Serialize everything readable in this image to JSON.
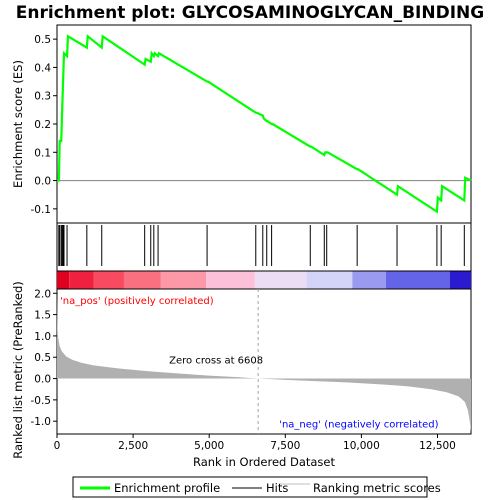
{
  "chart_data": {
    "type": "line",
    "title": "Enrichment plot: GLYCOSAMINOGLYCAN_BINDING",
    "top_panel": {
      "ylabel": "Enrichment score (ES)",
      "ylim": [
        -0.15,
        0.55
      ],
      "yticks": [
        "0.5",
        "0.4",
        "0.3",
        "0.2",
        "0.1",
        "0.0",
        "-0.1"
      ],
      "ytick_values": [
        0.5,
        0.4,
        0.3,
        0.2,
        0.1,
        0.0,
        -0.1
      ],
      "series": [
        {
          "name": "Enrichment profile",
          "color": "#00ff00",
          "points": [
            [
              0,
              0.0
            ],
            [
              60,
              0.0
            ],
            [
              90,
              0.14
            ],
            [
              140,
              0.14
            ],
            [
              170,
              0.25
            ],
            [
              200,
              0.35
            ],
            [
              230,
              0.45
            ],
            [
              330,
              0.44
            ],
            [
              360,
              0.51
            ],
            [
              980,
              0.47
            ],
            [
              1010,
              0.51
            ],
            [
              1470,
              0.47
            ],
            [
              1500,
              0.51
            ],
            [
              2880,
              0.41
            ],
            [
              2910,
              0.43
            ],
            [
              3080,
              0.42
            ],
            [
              3110,
              0.45
            ],
            [
              3180,
              0.44
            ],
            [
              3210,
              0.45
            ],
            [
              3320,
              0.44
            ],
            [
              3350,
              0.45
            ],
            [
              4930,
              0.35
            ],
            [
              4960,
              0.35
            ],
            [
              6530,
              0.24
            ],
            [
              6560,
              0.24
            ],
            [
              6760,
              0.23
            ],
            [
              6790,
              0.22
            ],
            [
              6890,
              0.21
            ],
            [
              6920,
              0.21
            ],
            [
              7050,
              0.2
            ],
            [
              7080,
              0.2
            ],
            [
              8320,
              0.12
            ],
            [
              8350,
              0.12
            ],
            [
              8780,
              0.09
            ],
            [
              8810,
              0.1
            ],
            [
              8860,
              0.1
            ],
            [
              8890,
              0.1
            ],
            [
              9860,
              0.04
            ],
            [
              9890,
              0.04
            ],
            [
              11170,
              -0.05
            ],
            [
              11200,
              -0.02
            ],
            [
              12480,
              -0.11
            ],
            [
              12510,
              -0.06
            ],
            [
              12620,
              -0.07
            ],
            [
              12650,
              -0.02
            ],
            [
              13380,
              -0.07
            ],
            [
              13410,
              0.01
            ],
            [
              13600,
              0.0
            ]
          ]
        }
      ]
    },
    "hits": [
      60,
      90,
      140,
      170,
      200,
      230,
      330,
      980,
      1470,
      2880,
      3080,
      3180,
      3320,
      4930,
      6530,
      6760,
      6890,
      7050,
      8320,
      8780,
      8860,
      9860,
      11170,
      12480,
      12620,
      13380
    ],
    "bottom_panel": {
      "ylabel": "Ranked list metric (PreRanked)",
      "xlabel": "Rank in Ordered Dataset",
      "ylim": [
        -1.3,
        2.1
      ],
      "yticks": [
        "2.0",
        "1.5",
        "1.0",
        "0.5",
        "0.0",
        "-0.5",
        "-1.0"
      ],
      "ytick_values": [
        2.0,
        1.5,
        1.0,
        0.5,
        0.0,
        -0.5,
        -1.0
      ],
      "xlim": [
        0,
        13600
      ],
      "xticks": [
        "0",
        "2,500",
        "5,000",
        "7,500",
        "10,000",
        "12,500"
      ],
      "xtick_values": [
        0,
        2500,
        5000,
        7500,
        10000,
        12500
      ],
      "metric_curve": [
        [
          0,
          2.0
        ],
        [
          15,
          1.2
        ],
        [
          40,
          0.95
        ],
        [
          80,
          0.78
        ],
        [
          150,
          0.65
        ],
        [
          300,
          0.52
        ],
        [
          500,
          0.44
        ],
        [
          800,
          0.37
        ],
        [
          1200,
          0.31
        ],
        [
          2000,
          0.24
        ],
        [
          3000,
          0.17
        ],
        [
          4000,
          0.12
        ],
        [
          5000,
          0.07
        ],
        [
          6000,
          0.03
        ],
        [
          6608,
          0.0
        ],
        [
          7500,
          -0.03
        ],
        [
          8500,
          -0.06
        ],
        [
          9500,
          -0.09
        ],
        [
          10500,
          -0.13
        ],
        [
          11500,
          -0.18
        ],
        [
          12300,
          -0.25
        ],
        [
          12800,
          -0.32
        ],
        [
          13200,
          -0.42
        ],
        [
          13400,
          -0.55
        ],
        [
          13500,
          -0.75
        ],
        [
          13560,
          -1.0
        ],
        [
          13600,
          -1.25
        ]
      ],
      "metric_color": "#b0b0b0",
      "zero_cross_label": "Zero cross at 6608",
      "zero_cross_value": 6608,
      "pos_label": "'na_pos' (positively correlated)",
      "pos_label_color": "#ff0000",
      "neg_label": "'na_neg' (negatively correlated)",
      "neg_label_color": "#0000ff"
    },
    "colorbar": [
      {
        "from": 0,
        "to": 400,
        "color": "#e00020"
      },
      {
        "from": 400,
        "to": 1200,
        "color": "#f02040"
      },
      {
        "from": 1200,
        "to": 2200,
        "color": "#f84a60"
      },
      {
        "from": 2200,
        "to": 3400,
        "color": "#fa7080"
      },
      {
        "from": 3400,
        "to": 4900,
        "color": "#fc98a8"
      },
      {
        "from": 4900,
        "to": 6500,
        "color": "#fcc0d8"
      },
      {
        "from": 6500,
        "to": 8200,
        "color": "#ecdcf4"
      },
      {
        "from": 8200,
        "to": 9700,
        "color": "#d4d4f8"
      },
      {
        "from": 9700,
        "to": 10800,
        "color": "#9a9af0"
      },
      {
        "from": 10800,
        "to": 12900,
        "color": "#6464e8"
      },
      {
        "from": 12900,
        "to": 13600,
        "color": "#2a1ad0"
      }
    ],
    "legend": [
      {
        "label": "Enrichment profile",
        "color": "#00ff00",
        "style": "thick-line"
      },
      {
        "label": "Hits",
        "color": "#000000",
        "style": "thin-line"
      },
      {
        "label": "Ranking metric scores",
        "color": "#c0c0c0",
        "style": "thin-line"
      }
    ]
  }
}
